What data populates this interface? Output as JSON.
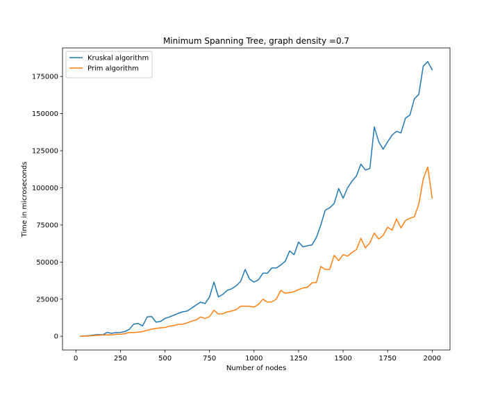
{
  "chart_data": {
    "type": "line",
    "title": "Minimum Spanning Tree, graph density =0.7",
    "xlabel": "Number of nodes",
    "ylabel": "Time in microseconds",
    "xlim": [
      -75,
      2100
    ],
    "ylim": [
      -9250,
      194250
    ],
    "xticks": [
      0,
      250,
      500,
      750,
      1000,
      1250,
      1500,
      1750,
      2000
    ],
    "yticks": [
      0,
      25000,
      50000,
      75000,
      100000,
      125000,
      150000,
      175000
    ],
    "legend_position": "upper left",
    "grid": false,
    "x": [
      25,
      50,
      75,
      100,
      125,
      150,
      175,
      200,
      225,
      250,
      275,
      300,
      325,
      350,
      375,
      400,
      425,
      450,
      475,
      500,
      525,
      550,
      575,
      600,
      625,
      650,
      675,
      700,
      725,
      750,
      775,
      800,
      825,
      850,
      875,
      900,
      925,
      950,
      975,
      1000,
      1025,
      1050,
      1075,
      1100,
      1125,
      1150,
      1175,
      1200,
      1225,
      1250,
      1275,
      1300,
      1325,
      1350,
      1375,
      1400,
      1425,
      1450,
      1475,
      1500,
      1525,
      1550,
      1575,
      1600,
      1625,
      1650,
      1675,
      1700,
      1725,
      1750,
      1775,
      1800,
      1825,
      1850,
      1875,
      1900,
      1925,
      1950,
      1975,
      2000
    ],
    "series": [
      {
        "name": "Kruskal algorithm",
        "color": "#1f77b4",
        "values": [
          0,
          200,
          400,
          800,
          1200,
          900,
          2600,
          2000,
          2500,
          2600,
          3200,
          4700,
          8200,
          8600,
          7000,
          13000,
          13300,
          9500,
          10000,
          12000,
          13000,
          14200,
          15500,
          16500,
          17000,
          19000,
          21000,
          23000,
          22000,
          26500,
          36500,
          26500,
          28200,
          31000,
          32000,
          34000,
          37000,
          45000,
          38500,
          36500,
          38000,
          42500,
          42500,
          46000,
          46000,
          48000,
          50500,
          57500,
          55000,
          63500,
          60200,
          61000,
          61500,
          66500,
          75000,
          85000,
          86500,
          89500,
          99500,
          93000,
          100000,
          104500,
          108000,
          116000,
          112000,
          113000,
          141000,
          131000,
          126000,
          131000,
          135500,
          138000,
          137000,
          147000,
          149000,
          160000,
          163000,
          182000,
          185000,
          179500
        ]
      },
      {
        "name": "Prim algorithm",
        "color": "#ff7f0e",
        "values": [
          0,
          100,
          200,
          500,
          700,
          800,
          1000,
          900,
          1300,
          1300,
          1800,
          2500,
          2500,
          2800,
          3200,
          4000,
          4800,
          5300,
          5700,
          5900,
          6800,
          7200,
          8000,
          8200,
          9000,
          10200,
          11000,
          13000,
          12000,
          13300,
          17500,
          15000,
          15200,
          16500,
          17000,
          18000,
          20200,
          20200,
          20200,
          19700,
          21500,
          25000,
          23000,
          23200,
          25000,
          31000,
          29000,
          29500,
          30000,
          31500,
          32500,
          33000,
          36000,
          36200,
          47000,
          45000,
          45000,
          54500,
          51000,
          55000,
          54000,
          56500,
          58500,
          66000,
          59500,
          63000,
          69500,
          65500,
          68000,
          73500,
          71500,
          79000,
          73000,
          78000,
          79500,
          80500,
          89000,
          106000,
          114000,
          93000
        ]
      }
    ]
  }
}
